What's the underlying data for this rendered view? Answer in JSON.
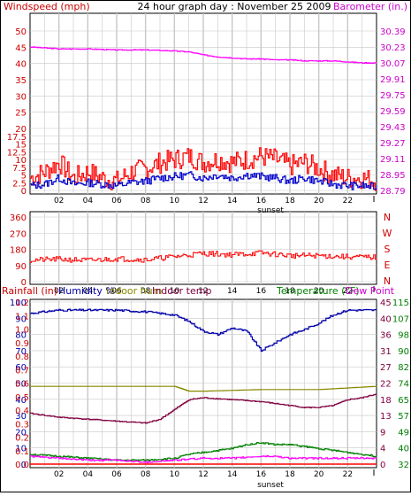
{
  "header": {
    "title": "24 hour graph day : November 25 2009",
    "left_label": "Windspeed (mph)",
    "right_label": "Barometer (in.)"
  },
  "colors": {
    "background": "#ffffff",
    "grid": "#c8c8c8",
    "axis": "#000000",
    "windspeed": "#ff0000",
    "wind_avg": "#0000cc",
    "barometer": "#ff00ff",
    "wind_direction": "#ff0000",
    "rainfall": "#ff0000",
    "humidity": "#0000aa",
    "indoor_hum": "#888800",
    "indoor_temp": "#800040",
    "temperature": "#008000",
    "dew_point": "#ff00ff"
  },
  "chart_data": [
    {
      "type": "line",
      "id": "wind-baro",
      "title": "24 hour graph day : November 25 2009",
      "xlabel": "sunset",
      "x_ticks": [
        "02",
        "04",
        "06",
        "08",
        "10",
        "12",
        "14",
        "16",
        "18",
        "20",
        "22"
      ],
      "y_left_label": "Windspeed (mph)",
      "y_left_ticks": [
        "0",
        "2.5",
        "5",
        "7.5",
        "10",
        "12.5",
        "15",
        "17.5",
        "20",
        "25",
        "30",
        "35",
        "40",
        "45",
        "50"
      ],
      "y_right_label": "Barometer (in.)",
      "y_right_ticks": [
        "28.79",
        "28.95",
        "29.11",
        "29.27",
        "29.43",
        "29.59",
        "29.75",
        "29.91",
        "30.07",
        "30.23",
        "30.39"
      ],
      "series": [
        {
          "name": "Windspeed (mph)",
          "axis": "left",
          "hours": [
            0,
            1,
            2,
            3,
            4,
            5,
            6,
            7,
            8,
            9,
            10,
            11,
            12,
            13,
            14,
            15,
            16,
            17,
            18,
            19,
            20,
            21,
            22,
            23,
            24
          ],
          "values": [
            4,
            6,
            9,
            4,
            6,
            4,
            3,
            6,
            7,
            9,
            10,
            11,
            9,
            10,
            9,
            10,
            11,
            10,
            8,
            9,
            7,
            5,
            4,
            4,
            3
          ]
        },
        {
          "name": "Wind average",
          "axis": "left",
          "hours": [
            0,
            1,
            2,
            3,
            4,
            5,
            6,
            7,
            8,
            9,
            10,
            11,
            12,
            13,
            14,
            15,
            16,
            17,
            18,
            19,
            20,
            21,
            22,
            23,
            24
          ],
          "values": [
            1.5,
            2,
            4,
            2,
            2.5,
            2,
            1.5,
            2.5,
            3,
            4,
            4.5,
            5,
            4,
            5,
            4,
            5,
            4.5,
            4,
            3,
            4,
            3,
            2,
            1.5,
            1.5,
            1
          ]
        },
        {
          "name": "Barometer (in.)",
          "axis": "right",
          "hours": [
            0,
            2,
            4,
            6,
            8,
            10,
            11,
            12,
            13,
            14,
            15,
            16,
            17,
            18,
            19,
            20,
            21,
            22,
            23,
            24
          ],
          "values": [
            30.23,
            30.21,
            30.21,
            30.2,
            30.2,
            30.19,
            30.18,
            30.15,
            30.13,
            30.12,
            30.11,
            30.11,
            30.1,
            30.1,
            30.09,
            30.09,
            30.09,
            30.08,
            30.07,
            30.07
          ]
        }
      ]
    },
    {
      "type": "line",
      "id": "wind-direction",
      "x_ticks": [
        "02",
        "04",
        "06",
        "08",
        "10",
        "12",
        "14",
        "16",
        "18",
        "20",
        "22"
      ],
      "y_left_ticks": [
        "0",
        "90",
        "180",
        "270",
        "360"
      ],
      "y_right_ticks": [
        "N",
        "E",
        "S",
        "W",
        "N"
      ],
      "series": [
        {
          "name": "Wind direction",
          "hours": [
            0,
            2,
            4,
            6,
            8,
            10,
            12,
            14,
            16,
            18,
            20,
            22,
            24
          ],
          "values": [
            120,
            125,
            118,
            128,
            122,
            140,
            158,
            150,
            160,
            145,
            145,
            138,
            135
          ]
        }
      ]
    },
    {
      "type": "line",
      "id": "rain-humidity-temp",
      "xlabel": "sunset",
      "x_ticks": [
        "02",
        "04",
        "06",
        "08",
        "10",
        "12",
        "14",
        "16",
        "18",
        "20",
        "22"
      ],
      "legend": [
        "Rainfall (in)",
        "Humidity %",
        "Indoor hum",
        "Indoor temp",
        "Temperature (°F)",
        "Dew Point"
      ],
      "y_rain_ticks": [
        "0.0",
        "0.1",
        "0.2",
        "0.3",
        "0.4",
        "0.5",
        "0.6",
        "0.7",
        "0.8",
        "0.9",
        "1.0",
        "1.1",
        "1.2"
      ],
      "y_humidity_ticks": [
        "0",
        "10",
        "20",
        "30",
        "40",
        "50",
        "60",
        "70",
        "80",
        "90",
        "100"
      ],
      "y_temp_c_ticks": [
        "0",
        "4",
        "9",
        "13",
        "18",
        "22",
        "27",
        "31",
        "36",
        "40",
        "45"
      ],
      "y_temp_f_ticks": [
        "32",
        "40",
        "49",
        "57",
        "65",
        "74",
        "82",
        "90",
        "98",
        "107",
        "115"
      ],
      "series": [
        {
          "name": "Rainfall (in)",
          "hours": [
            0,
            24
          ],
          "values": [
            0.0,
            0.0
          ]
        },
        {
          "name": "Humidity %",
          "hours": [
            0,
            2,
            4,
            6,
            8,
            10,
            11,
            12,
            13,
            14,
            15,
            15.5,
            16,
            17,
            18,
            19,
            20,
            21,
            22,
            23,
            24
          ],
          "values": [
            93,
            95,
            95,
            95,
            94,
            92,
            88,
            82,
            80,
            84,
            82,
            76,
            70,
            75,
            80,
            83,
            87,
            92,
            95,
            95,
            95
          ]
        },
        {
          "name": "Indoor hum",
          "hours": [
            0,
            4,
            8,
            10,
            11,
            12,
            16,
            20,
            22,
            24
          ],
          "values": [
            48,
            48,
            48,
            48,
            45,
            45,
            46,
            46,
            47,
            48
          ]
        },
        {
          "name": "Indoor temp",
          "hours": [
            0,
            2,
            4,
            6,
            8,
            9,
            10,
            11,
            12,
            14,
            16,
            18,
            19,
            20,
            21,
            22,
            23,
            24
          ],
          "values": [
            58,
            56,
            55,
            54,
            53,
            55,
            60,
            65,
            66,
            65,
            64,
            62,
            61,
            61,
            62,
            65,
            66,
            68
          ]
        },
        {
          "name": "Temperature (°F)",
          "hours": [
            0,
            2,
            4,
            6,
            8,
            10,
            11,
            12,
            14,
            15,
            16,
            17,
            18,
            19,
            20,
            21,
            22,
            23,
            24
          ],
          "values": [
            37,
            36,
            35,
            34,
            34,
            35,
            37,
            38,
            40,
            42,
            43,
            42,
            42,
            41,
            40,
            39,
            38,
            37,
            36
          ]
        },
        {
          "name": "Dew Point",
          "hours": [
            0,
            2,
            4,
            6,
            8,
            10,
            12,
            14,
            16,
            17,
            18,
            20,
            22,
            24
          ],
          "values": [
            36,
            35,
            34,
            34,
            33,
            34,
            35,
            35,
            36,
            36,
            35,
            35,
            35,
            35
          ]
        }
      ]
    }
  ]
}
